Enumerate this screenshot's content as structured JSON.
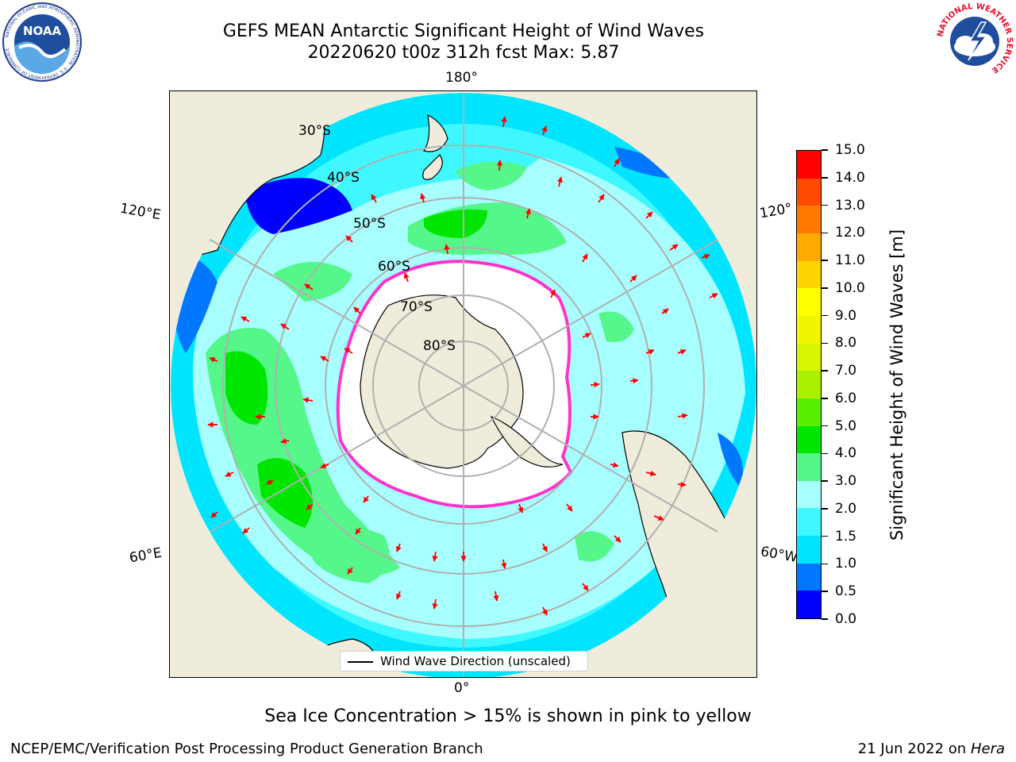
{
  "title_line1": "GEFS MEAN Antarctic Significant Height of Wind Waves",
  "title_line2": "20220620 t00z 312h fcst   Max: 5.87",
  "longitude_labels": {
    "top": "180°",
    "bottom": "0°",
    "upper_left": "120°E",
    "lower_left": "60°E",
    "upper_right": "120°",
    "lower_right": "60°W"
  },
  "latitude_labels": [
    "30°S",
    "40°S",
    "50°S",
    "60°S",
    "70°S",
    "80°S"
  ],
  "legend_label": "Wind Wave Direction (unscaled)",
  "colorbar": {
    "title": "Significant Height of Wind Waves [m]",
    "ticks": [
      "0.0",
      "0.5",
      "1.0",
      "1.5",
      "2.0",
      "3.0",
      "4.0",
      "5.0",
      "6.0",
      "7.0",
      "8.0",
      "9.0",
      "10.0",
      "11.0",
      "12.0",
      "13.0",
      "14.0",
      "15.0"
    ],
    "colors": [
      "#0000ff",
      "#0077ff",
      "#00e5ff",
      "#3ff7ff",
      "#a8ffff",
      "#55f78a",
      "#00e600",
      "#57f000",
      "#aaf000",
      "#d6f500",
      "#f0f500",
      "#ffff00",
      "#ffd500",
      "#ffaa00",
      "#ff7a00",
      "#ff4a00",
      "#ff0000"
    ]
  },
  "map_colors": {
    "land": "#f0ecdb",
    "ice_shelf": "#ffffff",
    "ocean_low": "#3ff7ff",
    "ocean_mid": "#a8ffff",
    "ocean_high": "#55f78a",
    "ocean_peak": "#00e600",
    "ocean_deep": "#0077ff",
    "ocean_calm": "#0000ff",
    "ice_edge": "#ff33cc",
    "arrow": "#ff0000",
    "grid": "#b0b0b0"
  },
  "subtitle": "Sea Ice Concentration > 15% is shown in pink to yellow",
  "footer_left": "NCEP/EMC/Verification Post Processing Product Generation Branch",
  "footer_right_date": "21 Jun 2022 on",
  "footer_right_host": "Hera",
  "logos": {
    "noaa_text": "NOAA",
    "noaa_ring": "NATIONAL OCEANIC AND ATMOSPHERIC ADMINISTRATION · U.S. DEPARTMENT OF COMMERCE",
    "nws_ring": "NATIONAL WEATHER SERVICE"
  }
}
